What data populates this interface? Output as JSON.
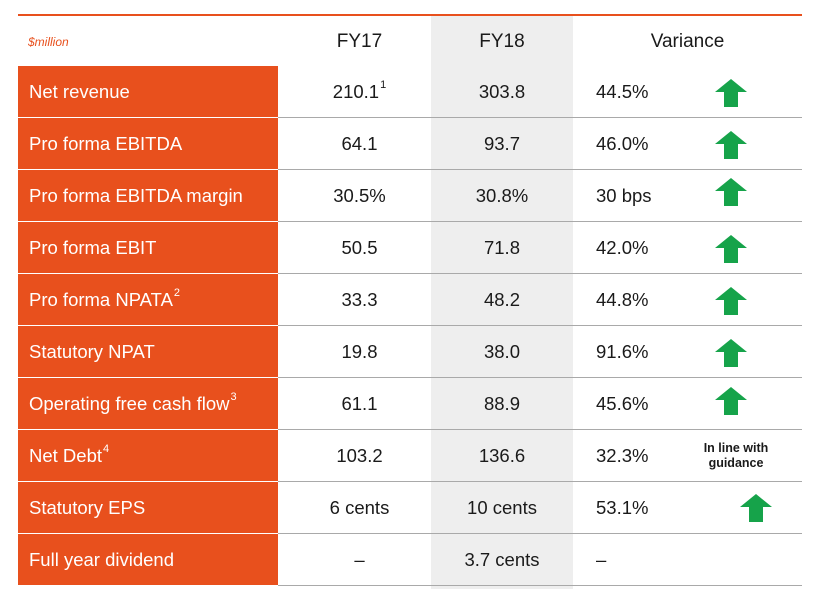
{
  "header": {
    "unit": "$million",
    "fy17": "FY17",
    "fy18": "FY18",
    "variance": "Variance"
  },
  "accent_color": "#e8501d",
  "arrow_color": "#16a34a",
  "rows": [
    {
      "label": "Net revenue",
      "label_sup": "",
      "fy17": "210.1",
      "fy17_sup": "1",
      "fy18": "303.8",
      "variance": "44.5%",
      "trend": "up-arrow-icon",
      "note": ""
    },
    {
      "label": "Pro forma EBITDA",
      "label_sup": "",
      "fy17": "64.1",
      "fy17_sup": "",
      "fy18": "93.7",
      "variance": "46.0%",
      "trend": "up-arrow-icon",
      "note": ""
    },
    {
      "label": "Pro forma EBITDA margin",
      "label_sup": "",
      "fy17": "30.5%",
      "fy17_sup": "",
      "fy18": "30.8%",
      "variance": "30 bps",
      "trend": "up-arrow-icon",
      "note": ""
    },
    {
      "label": "Pro forma EBIT",
      "label_sup": "",
      "fy17": "50.5",
      "fy17_sup": "",
      "fy18": "71.8",
      "variance": "42.0%",
      "trend": "up-arrow-icon",
      "note": ""
    },
    {
      "label": "Pro forma NPATA",
      "label_sup": "2",
      "fy17": "33.3",
      "fy17_sup": "",
      "fy18": "48.2",
      "variance": "44.8%",
      "trend": "up-arrow-icon",
      "note": ""
    },
    {
      "label": "Statutory NPAT",
      "label_sup": "",
      "fy17": "19.8",
      "fy17_sup": "",
      "fy18": "38.0",
      "variance": "91.6%",
      "trend": "up-arrow-icon",
      "note": ""
    },
    {
      "label": "Operating free cash flow",
      "label_sup": "3",
      "fy17": "61.1",
      "fy17_sup": "",
      "fy18": "88.9",
      "variance": "45.6%",
      "trend": "up-arrow-icon",
      "note": ""
    },
    {
      "label": "Net Debt",
      "label_sup": "4",
      "fy17": "103.2",
      "fy17_sup": "",
      "fy18": "136.6",
      "variance": "32.3%",
      "trend": "",
      "note_line1": "In line with",
      "note_line2": "guidance"
    },
    {
      "label": "Statutory EPS",
      "label_sup": "",
      "fy17": "6 cents",
      "fy17_sup": "",
      "fy18": "10 cents",
      "variance": "53.1%",
      "trend": "up-arrow-icon",
      "note": ""
    },
    {
      "label": "Full year dividend",
      "label_sup": "",
      "fy17": "–",
      "fy17_sup": "",
      "fy18": "3.7 cents",
      "variance": "–",
      "trend": "",
      "note": ""
    }
  ]
}
